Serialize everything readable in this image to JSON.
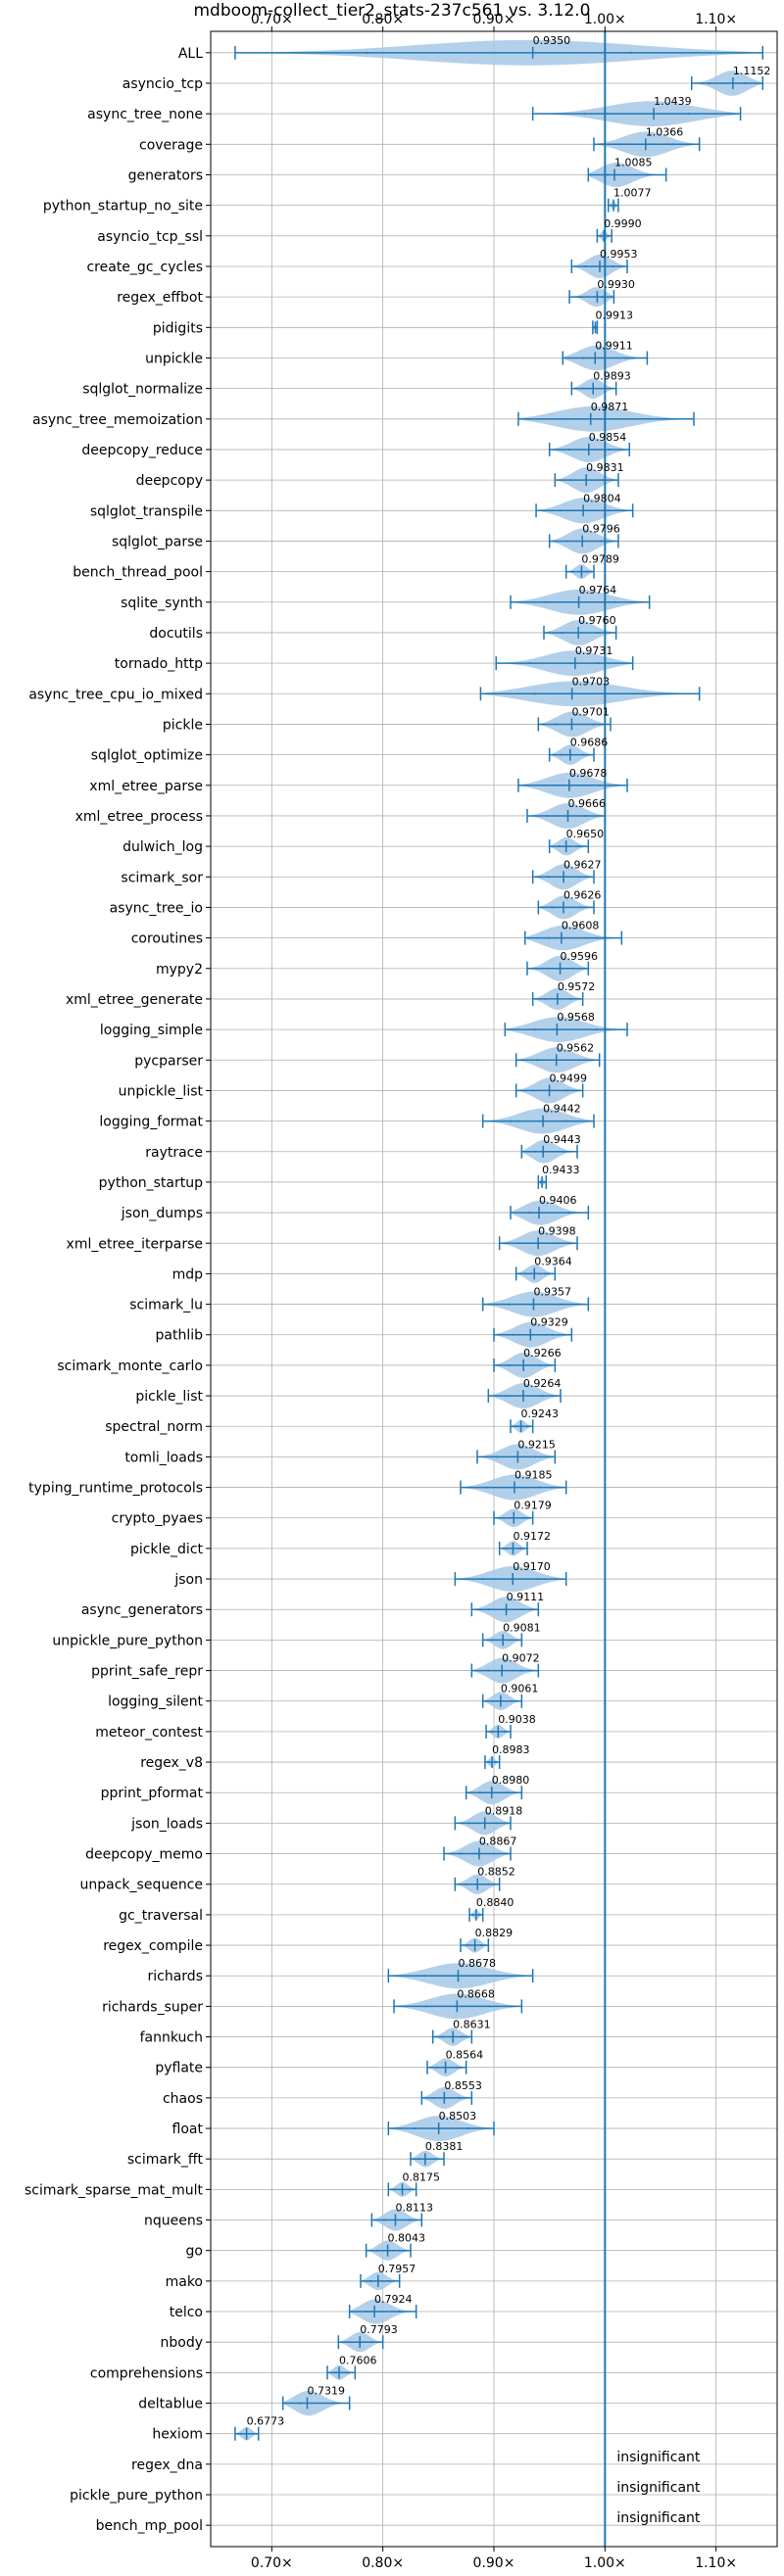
{
  "chart_data": {
    "type": "violin",
    "title": "mdboom-collect_tier2_stats-237c561 vs. 3.12.0",
    "xlim": [
      0.645,
      1.155
    ],
    "x_ticks": [
      0.7,
      0.8,
      0.9,
      1.0,
      1.1
    ],
    "x_tick_labels": [
      "0.70×",
      "0.80×",
      "0.90×",
      "1.00×",
      "1.10×"
    ],
    "reference_line": 1.0,
    "grid": true,
    "color_line": "#1f77b4",
    "color_violin": "#a6c8e6",
    "benchmarks": [
      {
        "name": "ALL",
        "label": "0.9350",
        "median": 0.935,
        "min": 0.667,
        "max": 1.142
      },
      {
        "name": "asyncio_tcp",
        "label": "1.1152",
        "median": 1.1152,
        "min": 1.078,
        "max": 1.142
      },
      {
        "name": "async_tree_none",
        "label": "1.0439",
        "median": 1.0439,
        "min": 0.935,
        "max": 1.122
      },
      {
        "name": "coverage",
        "label": "1.0366",
        "median": 1.0366,
        "min": 0.99,
        "max": 1.085
      },
      {
        "name": "generators",
        "label": "1.0085",
        "median": 1.0085,
        "min": 0.985,
        "max": 1.055
      },
      {
        "name": "python_startup_no_site",
        "label": "1.0077",
        "median": 1.0077,
        "min": 1.003,
        "max": 1.012
      },
      {
        "name": "asyncio_tcp_ssl",
        "label": "0.9990",
        "median": 0.999,
        "min": 0.993,
        "max": 1.006
      },
      {
        "name": "create_gc_cycles",
        "label": "0.9953",
        "median": 0.9953,
        "min": 0.97,
        "max": 1.02
      },
      {
        "name": "regex_effbot",
        "label": "0.9930",
        "median": 0.993,
        "min": 0.968,
        "max": 1.008
      },
      {
        "name": "pidigits",
        "label": "0.9913",
        "median": 0.9913,
        "min": 0.989,
        "max": 0.993
      },
      {
        "name": "unpickle",
        "label": "0.9911",
        "median": 0.9911,
        "min": 0.962,
        "max": 1.038
      },
      {
        "name": "sqlglot_normalize",
        "label": "0.9893",
        "median": 0.9893,
        "min": 0.97,
        "max": 1.01
      },
      {
        "name": "async_tree_memoization",
        "label": "0.9871",
        "median": 0.9871,
        "min": 0.922,
        "max": 1.08
      },
      {
        "name": "deepcopy_reduce",
        "label": "0.9854",
        "median": 0.9854,
        "min": 0.95,
        "max": 1.022
      },
      {
        "name": "deepcopy",
        "label": "0.9831",
        "median": 0.9831,
        "min": 0.955,
        "max": 1.012
      },
      {
        "name": "sqlglot_transpile",
        "label": "0.9804",
        "median": 0.9804,
        "min": 0.938,
        "max": 1.025
      },
      {
        "name": "sqlglot_parse",
        "label": "0.9796",
        "median": 0.9796,
        "min": 0.95,
        "max": 1.012
      },
      {
        "name": "bench_thread_pool",
        "label": "0.9789",
        "median": 0.9789,
        "min": 0.965,
        "max": 0.99
      },
      {
        "name": "sqlite_synth",
        "label": "0.9764",
        "median": 0.9764,
        "min": 0.915,
        "max": 1.04
      },
      {
        "name": "docutils",
        "label": "0.9760",
        "median": 0.976,
        "min": 0.945,
        "max": 1.01
      },
      {
        "name": "tornado_http",
        "label": "0.9731",
        "median": 0.9731,
        "min": 0.902,
        "max": 1.025
      },
      {
        "name": "async_tree_cpu_io_mixed",
        "label": "0.9703",
        "median": 0.9703,
        "min": 0.888,
        "max": 1.085
      },
      {
        "name": "pickle",
        "label": "0.9701",
        "median": 0.9701,
        "min": 0.94,
        "max": 1.005
      },
      {
        "name": "sqlglot_optimize",
        "label": "0.9686",
        "median": 0.9686,
        "min": 0.95,
        "max": 0.99
      },
      {
        "name": "xml_etree_parse",
        "label": "0.9678",
        "median": 0.9678,
        "min": 0.922,
        "max": 1.02
      },
      {
        "name": "xml_etree_process",
        "label": "0.9666",
        "median": 0.9666,
        "min": 0.93,
        "max": 1.0
      },
      {
        "name": "dulwich_log",
        "label": "0.9650",
        "median": 0.965,
        "min": 0.95,
        "max": 0.985
      },
      {
        "name": "scimark_sor",
        "label": "0.9627",
        "median": 0.9627,
        "min": 0.935,
        "max": 0.99
      },
      {
        "name": "async_tree_io",
        "label": "0.9626",
        "median": 0.9626,
        "min": 0.94,
        "max": 0.99
      },
      {
        "name": "coroutines",
        "label": "0.9608",
        "median": 0.9608,
        "min": 0.928,
        "max": 1.015
      },
      {
        "name": "mypy2",
        "label": "0.9596",
        "median": 0.9596,
        "min": 0.93,
        "max": 0.985
      },
      {
        "name": "xml_etree_generate",
        "label": "0.9572",
        "median": 0.9572,
        "min": 0.935,
        "max": 0.98
      },
      {
        "name": "logging_simple",
        "label": "0.9568",
        "median": 0.9568,
        "min": 0.91,
        "max": 1.02
      },
      {
        "name": "pycparser",
        "label": "0.9562",
        "median": 0.9562,
        "min": 0.92,
        "max": 0.995
      },
      {
        "name": "unpickle_list",
        "label": "0.9499",
        "median": 0.9499,
        "min": 0.92,
        "max": 0.98
      },
      {
        "name": "logging_format",
        "label": "0.9442",
        "median": 0.9442,
        "min": 0.89,
        "max": 0.99
      },
      {
        "name": "raytrace",
        "label": "0.9443",
        "median": 0.9443,
        "min": 0.925,
        "max": 0.975
      },
      {
        "name": "python_startup",
        "label": "0.9433",
        "median": 0.9433,
        "min": 0.94,
        "max": 0.947
      },
      {
        "name": "json_dumps",
        "label": "0.9406",
        "median": 0.9406,
        "min": 0.915,
        "max": 0.985
      },
      {
        "name": "xml_etree_iterparse",
        "label": "0.9398",
        "median": 0.9398,
        "min": 0.905,
        "max": 0.975
      },
      {
        "name": "mdp",
        "label": "0.9364",
        "median": 0.9364,
        "min": 0.92,
        "max": 0.955
      },
      {
        "name": "scimark_lu",
        "label": "0.9357",
        "median": 0.9357,
        "min": 0.89,
        "max": 0.985
      },
      {
        "name": "pathlib",
        "label": "0.9329",
        "median": 0.9329,
        "min": 0.9,
        "max": 0.97
      },
      {
        "name": "scimark_monte_carlo",
        "label": "0.9266",
        "median": 0.9266,
        "min": 0.9,
        "max": 0.955
      },
      {
        "name": "pickle_list",
        "label": "0.9264",
        "median": 0.9264,
        "min": 0.895,
        "max": 0.96
      },
      {
        "name": "spectral_norm",
        "label": "0.9243",
        "median": 0.9243,
        "min": 0.915,
        "max": 0.935
      },
      {
        "name": "tomli_loads",
        "label": "0.9215",
        "median": 0.9215,
        "min": 0.885,
        "max": 0.955
      },
      {
        "name": "typing_runtime_protocols",
        "label": "0.9185",
        "median": 0.9185,
        "min": 0.87,
        "max": 0.965
      },
      {
        "name": "crypto_pyaes",
        "label": "0.9179",
        "median": 0.9179,
        "min": 0.9,
        "max": 0.935
      },
      {
        "name": "pickle_dict",
        "label": "0.9172",
        "median": 0.9172,
        "min": 0.905,
        "max": 0.93
      },
      {
        "name": "json",
        "label": "0.9170",
        "median": 0.917,
        "min": 0.865,
        "max": 0.965
      },
      {
        "name": "async_generators",
        "label": "0.9111",
        "median": 0.9111,
        "min": 0.88,
        "max": 0.94
      },
      {
        "name": "unpickle_pure_python",
        "label": "0.9081",
        "median": 0.9081,
        "min": 0.89,
        "max": 0.925
      },
      {
        "name": "pprint_safe_repr",
        "label": "0.9072",
        "median": 0.9072,
        "min": 0.88,
        "max": 0.94
      },
      {
        "name": "logging_silent",
        "label": "0.9061",
        "median": 0.9061,
        "min": 0.89,
        "max": 0.925
      },
      {
        "name": "meteor_contest",
        "label": "0.9038",
        "median": 0.9038,
        "min": 0.893,
        "max": 0.915
      },
      {
        "name": "regex_v8",
        "label": "0.8983",
        "median": 0.8983,
        "min": 0.892,
        "max": 0.905
      },
      {
        "name": "pprint_pformat",
        "label": "0.8980",
        "median": 0.898,
        "min": 0.875,
        "max": 0.925
      },
      {
        "name": "json_loads",
        "label": "0.8918",
        "median": 0.8918,
        "min": 0.865,
        "max": 0.915
      },
      {
        "name": "deepcopy_memo",
        "label": "0.8867",
        "median": 0.8867,
        "min": 0.855,
        "max": 0.915
      },
      {
        "name": "unpack_sequence",
        "label": "0.8852",
        "median": 0.8852,
        "min": 0.865,
        "max": 0.905
      },
      {
        "name": "gc_traversal",
        "label": "0.8840",
        "median": 0.884,
        "min": 0.878,
        "max": 0.89
      },
      {
        "name": "regex_compile",
        "label": "0.8829",
        "median": 0.8829,
        "min": 0.87,
        "max": 0.895
      },
      {
        "name": "richards",
        "label": "0.8678",
        "median": 0.8678,
        "min": 0.805,
        "max": 0.935
      },
      {
        "name": "richards_super",
        "label": "0.8668",
        "median": 0.8668,
        "min": 0.81,
        "max": 0.925
      },
      {
        "name": "fannkuch",
        "label": "0.8631",
        "median": 0.8631,
        "min": 0.845,
        "max": 0.88
      },
      {
        "name": "pyflate",
        "label": "0.8564",
        "median": 0.8564,
        "min": 0.84,
        "max": 0.875
      },
      {
        "name": "chaos",
        "label": "0.8553",
        "median": 0.8553,
        "min": 0.835,
        "max": 0.88
      },
      {
        "name": "float",
        "label": "0.8503",
        "median": 0.8503,
        "min": 0.805,
        "max": 0.9
      },
      {
        "name": "scimark_fft",
        "label": "0.8381",
        "median": 0.8381,
        "min": 0.825,
        "max": 0.855
      },
      {
        "name": "scimark_sparse_mat_mult",
        "label": "0.8175",
        "median": 0.8175,
        "min": 0.805,
        "max": 0.83
      },
      {
        "name": "nqueens",
        "label": "0.8113",
        "median": 0.8113,
        "min": 0.79,
        "max": 0.835
      },
      {
        "name": "go",
        "label": "0.8043",
        "median": 0.8043,
        "min": 0.785,
        "max": 0.825
      },
      {
        "name": "mako",
        "label": "0.7957",
        "median": 0.7957,
        "min": 0.78,
        "max": 0.815
      },
      {
        "name": "telco",
        "label": "0.7924",
        "median": 0.7924,
        "min": 0.77,
        "max": 0.83
      },
      {
        "name": "nbody",
        "label": "0.7793",
        "median": 0.7793,
        "min": 0.76,
        "max": 0.8
      },
      {
        "name": "comprehensions",
        "label": "0.7606",
        "median": 0.7606,
        "min": 0.75,
        "max": 0.775
      },
      {
        "name": "deltablue",
        "label": "0.7319",
        "median": 0.7319,
        "min": 0.71,
        "max": 0.77
      },
      {
        "name": "hexiom",
        "label": "0.6773",
        "median": 0.6773,
        "min": 0.667,
        "max": 0.688
      },
      {
        "name": "regex_dna",
        "label": "insignificant",
        "median": null,
        "min": null,
        "max": null
      },
      {
        "name": "pickle_pure_python",
        "label": "insignificant",
        "median": null,
        "min": null,
        "max": null
      },
      {
        "name": "bench_mp_pool",
        "label": "insignificant",
        "median": null,
        "min": null,
        "max": null
      }
    ]
  }
}
